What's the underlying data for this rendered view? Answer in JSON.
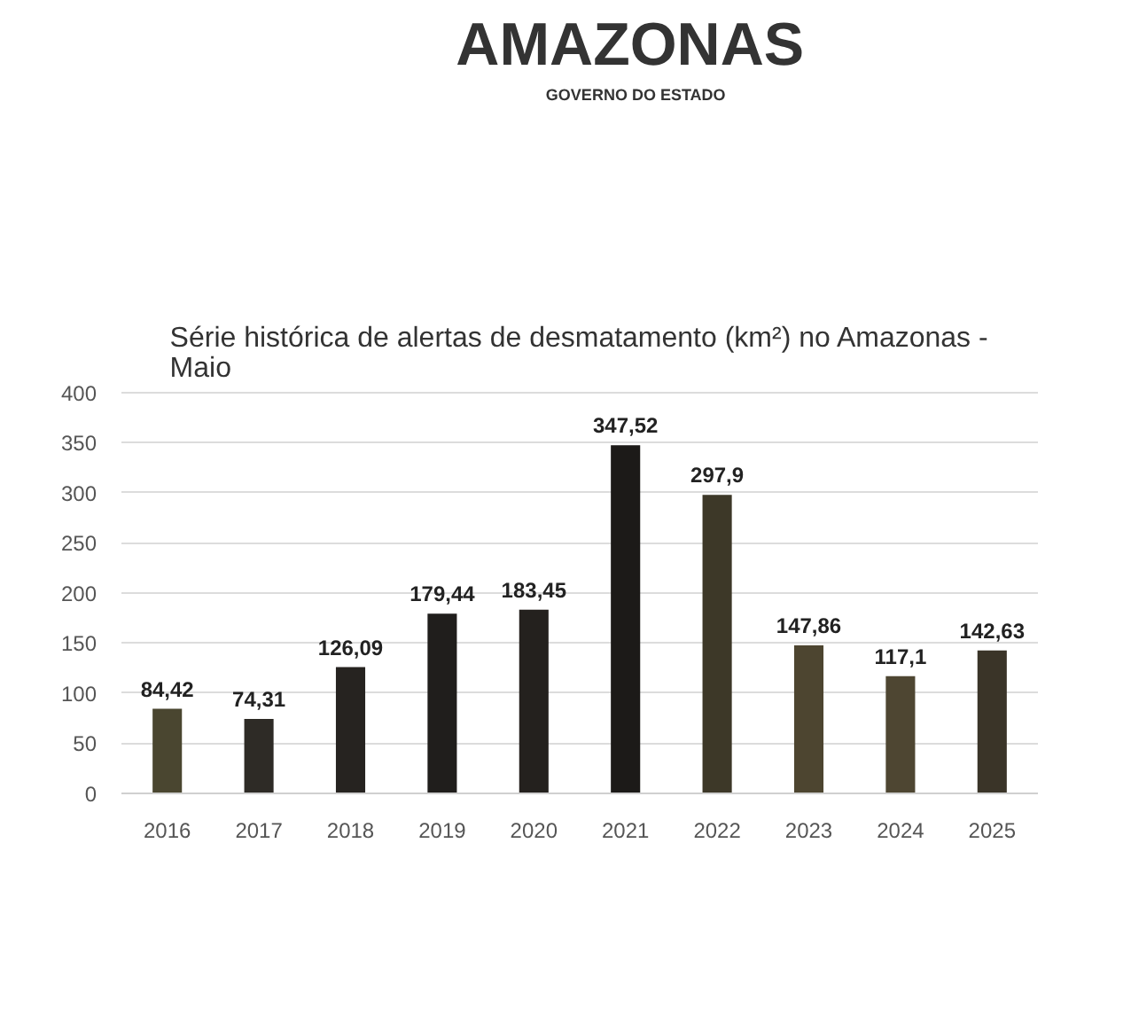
{
  "chart_data": {
    "type": "bar",
    "title": "Série histórica de alertas de desmatamento (km²) no Amazonas - Maio",
    "annotations": [
      "AMAZONAS",
      "GOVERNO DO ESTADO"
    ],
    "categories": [
      "2016",
      "2017",
      "2018",
      "2019",
      "2020",
      "2021",
      "2022",
      "2023",
      "2024",
      "2025"
    ],
    "values": [
      84.42,
      74.31,
      126.09,
      179.44,
      183.45,
      347.52,
      297.9,
      147.86,
      117.1,
      142.63
    ],
    "value_labels": [
      "84,42",
      "74,31",
      "126,09",
      "179,44",
      "183,45",
      "347,52",
      "297,9",
      "147,86",
      "117,1",
      "142,63"
    ],
    "colors": [
      "#4a4630",
      "#2e2b26",
      "#262320",
      "#201e1c",
      "#24211e",
      "#1c1a18",
      "#3d3828",
      "#4d4530",
      "#4e4632",
      "#3a3428"
    ],
    "ylim": [
      0,
      400
    ],
    "yticks": [
      0,
      50,
      100,
      150,
      200,
      250,
      300,
      350,
      400
    ],
    "grid": "y"
  }
}
